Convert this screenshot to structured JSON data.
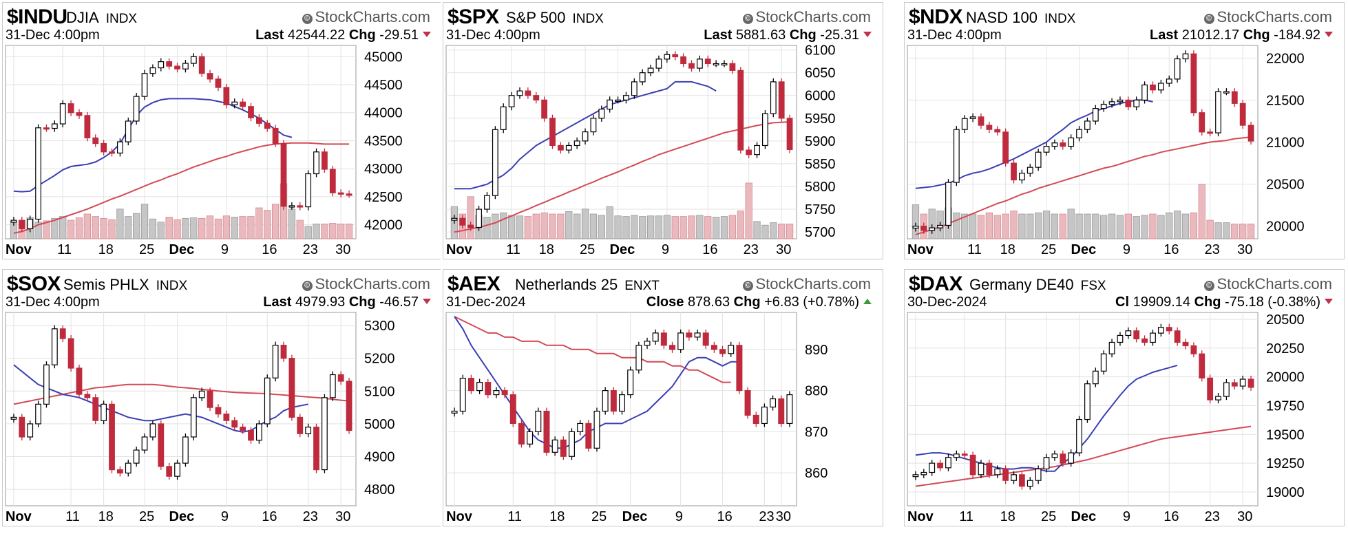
{
  "brand_label": "StockCharts.com",
  "chart_data": [
    {
      "type": "candlestick",
      "symbol": "$INDU",
      "name": "DJIA",
      "exchange": "INDX",
      "date": "31-Dec 4:00pm",
      "last_label": "Last",
      "last": "42544.22",
      "chg_label": "Chg",
      "chg": "-29.51",
      "direction": "down",
      "ylim": [
        41750,
        45200
      ],
      "yticks": [
        42000,
        42500,
        43000,
        43500,
        44000,
        44500,
        45000
      ],
      "xticks": [
        {
          "label": "Nov",
          "i": 0,
          "bold": true
        },
        {
          "label": "11",
          "i": 6
        },
        {
          "label": "18",
          "i": 11
        },
        {
          "label": "25",
          "i": 16
        },
        {
          "label": "Dec",
          "i": 20,
          "bold": true
        },
        {
          "label": "9",
          "i": 26
        },
        {
          "label": "16",
          "i": 31
        },
        {
          "label": "23",
          "i": 36
        },
        {
          "label": "30",
          "i": 40
        }
      ],
      "n": 42,
      "close": [
        42080,
        41930,
        42100,
        43730,
        43720,
        43800,
        44160,
        44000,
        43950,
        43550,
        43450,
        43300,
        43280,
        43480,
        43850,
        44290,
        44700,
        44800,
        44910,
        44830,
        44780,
        44880,
        45000,
        44700,
        44600,
        44450,
        44140,
        44190,
        44110,
        43910,
        43810,
        43720,
        43450,
        42330,
        42340,
        42320,
        42910,
        43300,
        42990,
        42570,
        42550,
        42544
      ],
      "ma20": [
        42600,
        42590,
        42600,
        42700,
        42790,
        42880,
        42980,
        43040,
        43060,
        43080,
        43120,
        43200,
        43300,
        43450,
        43700,
        43950,
        44100,
        44180,
        44230,
        44250,
        44250,
        44250,
        44250,
        44240,
        44230,
        44200,
        44170,
        44110,
        44050,
        43980,
        43900,
        43800,
        43700,
        43600,
        43560
      ],
      "ma50": [
        41850,
        41880,
        41930,
        42000,
        42040,
        42080,
        42130,
        42180,
        42230,
        42280,
        42340,
        42400,
        42460,
        42510,
        42570,
        42630,
        42690,
        42750,
        42800,
        42860,
        42910,
        42970,
        43030,
        43080,
        43130,
        43180,
        43220,
        43270,
        43310,
        43350,
        43390,
        43420,
        43440,
        43450,
        43460,
        43460,
        43460,
        43450,
        43440,
        43440,
        43440,
        43440
      ],
      "volume": [
        0.28,
        0.3,
        0.34,
        0.27,
        0.29,
        0.33,
        0.36,
        0.3,
        0.34,
        0.4,
        0.36,
        0.33,
        0.31,
        0.48,
        0.36,
        0.41,
        0.56,
        0.32,
        0.27,
        0.35,
        0.31,
        0.33,
        0.34,
        0.33,
        0.37,
        0.32,
        0.37,
        0.35,
        0.36,
        0.36,
        0.5,
        0.46,
        0.56,
        0.89,
        0.48,
        0.3,
        0.2,
        0.24,
        0.24,
        0.25,
        0.24,
        0.24
      ]
    },
    {
      "type": "candlestick",
      "symbol": "$SPX",
      "name": "S&P 500",
      "exchange": "INDX",
      "date": "31-Dec 4:00pm",
      "last_label": "Last",
      "last": "5881.63",
      "chg_label": "Chg",
      "chg": "-25.31",
      "direction": "down",
      "ylim": [
        5685,
        6110
      ],
      "yticks": [
        5700,
        5750,
        5800,
        5850,
        5900,
        5950,
        6000,
        6050,
        6100
      ],
      "xticks": [
        {
          "label": "Nov",
          "i": 0,
          "bold": true
        },
        {
          "label": "11",
          "i": 7
        },
        {
          "label": "18",
          "i": 11
        },
        {
          "label": "25",
          "i": 16
        },
        {
          "label": "Dec",
          "i": 20,
          "bold": true
        },
        {
          "label": "9",
          "i": 26
        },
        {
          "label": "16",
          "i": 31
        },
        {
          "label": "23",
          "i": 36
        },
        {
          "label": "30",
          "i": 40
        }
      ],
      "n": 42,
      "close": [
        5730,
        5715,
        5710,
        5750,
        5780,
        5925,
        5975,
        6000,
        6010,
        6000,
        5990,
        5950,
        5890,
        5880,
        5890,
        5900,
        5920,
        5950,
        5970,
        5990,
        5990,
        6000,
        6030,
        6050,
        6060,
        6080,
        6090,
        6085,
        6070,
        6060,
        6080,
        6070,
        6070,
        6070,
        6055,
        5880,
        5870,
        5890,
        5960,
        6030,
        5950,
        5881
      ],
      "ma20": [
        5795,
        5795,
        5795,
        5800,
        5805,
        5815,
        5825,
        5840,
        5860,
        5875,
        5890,
        5900,
        5910,
        5920,
        5930,
        5940,
        5950,
        5960,
        5970,
        5980,
        5985,
        5990,
        5995,
        6000,
        6005,
        6010,
        6015,
        6030,
        6030,
        6030,
        6025,
        6020,
        6010
      ],
      "ma50": [
        5700,
        5703,
        5707,
        5710,
        5715,
        5720,
        5728,
        5735,
        5743,
        5750,
        5758,
        5765,
        5773,
        5780,
        5788,
        5795,
        5803,
        5810,
        5818,
        5825,
        5832,
        5840,
        5847,
        5855,
        5862,
        5870,
        5876,
        5882,
        5888,
        5894,
        5900,
        5906,
        5912,
        5918,
        5922,
        5926,
        5930,
        5934,
        5937,
        5940,
        5941,
        5942
      ],
      "volume": [
        0.52,
        0.4,
        0.68,
        0.38,
        0.35,
        0.4,
        0.42,
        0.38,
        0.37,
        0.36,
        0.4,
        0.42,
        0.4,
        0.4,
        0.44,
        0.4,
        0.48,
        0.4,
        0.38,
        0.52,
        0.37,
        0.36,
        0.38,
        0.36,
        0.37,
        0.37,
        0.38,
        0.36,
        0.36,
        0.37,
        0.38,
        0.36,
        0.35,
        0.36,
        0.38,
        0.45,
        0.9,
        0.28,
        0.22,
        0.26,
        0.24,
        0.24
      ]
    },
    {
      "type": "candlestick",
      "symbol": "$NDX",
      "name": "NASD 100",
      "exchange": "INDX",
      "date": "31-Dec 4:00pm",
      "last_label": "Last",
      "last": "21012.17",
      "chg_label": "Chg",
      "chg": "-184.92",
      "direction": "down",
      "ylim": [
        19850,
        22150
      ],
      "yticks": [
        20000,
        20500,
        21000,
        21500,
        22000
      ],
      "xticks": [
        {
          "label": "Nov",
          "i": 0,
          "bold": true
        },
        {
          "label": "11",
          "i": 7
        },
        {
          "label": "18",
          "i": 11
        },
        {
          "label": "25",
          "i": 16
        },
        {
          "label": "Dec",
          "i": 20,
          "bold": true
        },
        {
          "label": "9",
          "i": 26
        },
        {
          "label": "16",
          "i": 31
        },
        {
          "label": "23",
          "i": 36
        },
        {
          "label": "30",
          "i": 40
        }
      ],
      "n": 42,
      "close": [
        20000,
        19950,
        19980,
        20010,
        20520,
        21150,
        21280,
        21300,
        21200,
        21150,
        21120,
        20750,
        20550,
        20630,
        20700,
        20880,
        20950,
        20990,
        20950,
        21050,
        21150,
        21250,
        21400,
        21450,
        21480,
        21500,
        21420,
        21500,
        21680,
        21620,
        21700,
        21750,
        21990,
        22050,
        21350,
        21120,
        21110,
        21600,
        21600,
        21460,
        21200,
        21012
      ],
      "ma20": [
        20450,
        20460,
        20470,
        20490,
        20510,
        20550,
        20600,
        20630,
        20650,
        20680,
        20720,
        20760,
        20800,
        20850,
        20900,
        20950,
        21000,
        21080,
        21150,
        21230,
        21280,
        21320,
        21370,
        21400,
        21430,
        21460,
        21480,
        21500,
        21500,
        21480
      ],
      "ma50": [
        19900,
        19930,
        19960,
        19990,
        20030,
        20070,
        20110,
        20150,
        20190,
        20230,
        20270,
        20300,
        20340,
        20380,
        20410,
        20450,
        20480,
        20510,
        20540,
        20570,
        20600,
        20630,
        20660,
        20690,
        20710,
        20740,
        20770,
        20800,
        20830,
        20850,
        20880,
        20900,
        20920,
        20940,
        20960,
        20980,
        21000,
        21010,
        21020,
        21040,
        21050,
        21060
      ],
      "volume": [
        0.55,
        0.4,
        0.48,
        0.45,
        0.5,
        0.42,
        0.4,
        0.4,
        0.38,
        0.42,
        0.38,
        0.4,
        0.45,
        0.4,
        0.4,
        0.42,
        0.45,
        0.4,
        0.4,
        0.48,
        0.4,
        0.4,
        0.4,
        0.38,
        0.4,
        0.38,
        0.4,
        0.36,
        0.38,
        0.4,
        0.38,
        0.42,
        0.45,
        0.4,
        0.42,
        0.88,
        0.3,
        0.26,
        0.26,
        0.24,
        0.24,
        0.24
      ]
    },
    {
      "type": "candlestick",
      "symbol": "$SOX",
      "name": "Semis PHLX",
      "exchange": "INDX",
      "date": "31-Dec 4:00pm",
      "last_label": "Last",
      "last": "4979.93",
      "chg_label": "Chg",
      "chg": "-46.57",
      "direction": "down",
      "ylim": [
        4750,
        5340
      ],
      "yticks": [
        4800,
        4900,
        5000,
        5100,
        5200,
        5300
      ],
      "xticks": [
        {
          "label": "Nov",
          "i": 0,
          "bold": true
        },
        {
          "label": "11",
          "i": 7
        },
        {
          "label": "18",
          "i": 11
        },
        {
          "label": "25",
          "i": 16
        },
        {
          "label": "Dec",
          "i": 20,
          "bold": true
        },
        {
          "label": "9",
          "i": 26
        },
        {
          "label": "16",
          "i": 31
        },
        {
          "label": "23",
          "i": 36
        },
        {
          "label": "30",
          "i": 40
        }
      ],
      "n": 42,
      "close": [
        5020,
        4960,
        5000,
        5060,
        5180,
        5290,
        5260,
        5170,
        5090,
        5080,
        5010,
        5060,
        4860,
        4850,
        4880,
        4920,
        4960,
        5000,
        4870,
        4840,
        4880,
        4960,
        5080,
        5100,
        5050,
        5030,
        5010,
        4990,
        4980,
        4950,
        5000,
        5140,
        5240,
        5200,
        5020,
        4970,
        4990,
        4860,
        5080,
        5150,
        5130,
        4980
      ],
      "ma20": [
        5180,
        5160,
        5140,
        5120,
        5110,
        5100,
        5090,
        5085,
        5080,
        5070,
        5060,
        5050,
        5040,
        5030,
        5020,
        5015,
        5010,
        5010,
        5015,
        5020,
        5025,
        5030,
        5025,
        5020,
        5010,
        5000,
        4990,
        4980,
        4975,
        4980,
        4995,
        5010,
        5020,
        5040,
        5050,
        5055,
        5060
      ],
      "ma50": [
        5060,
        5065,
        5070,
        5075,
        5080,
        5085,
        5090,
        5095,
        5100,
        5105,
        5110,
        5112,
        5115,
        5118,
        5120,
        5120,
        5120,
        5120,
        5118,
        5115,
        5112,
        5110,
        5108,
        5105,
        5103,
        5100,
        5098,
        5096,
        5095,
        5094,
        5093,
        5092,
        5090,
        5088,
        5086,
        5084,
        5082,
        5080,
        5078,
        5075,
        5072,
        5070
      ]
    },
    {
      "type": "candlestick",
      "symbol": "$AEX",
      "name": "Netherlands 25",
      "exchange": "ENXT",
      "date": "31-Dec-2024",
      "last_label": "Close",
      "last": "878.63",
      "chg_label": "Chg",
      "chg": "+6.83 (+0.78%)",
      "direction": "up",
      "ylim": [
        852,
        899
      ],
      "yticks": [
        860,
        870,
        880,
        890
      ],
      "xticks": [
        {
          "label": "Nov",
          "i": 0,
          "bold": true
        },
        {
          "label": "11",
          "i": 7
        },
        {
          "label": "18",
          "i": 12
        },
        {
          "label": "25",
          "i": 17
        },
        {
          "label": "Dec",
          "i": 21,
          "bold": true
        },
        {
          "label": "9",
          "i": 27
        },
        {
          "label": "16",
          "i": 32
        },
        {
          "label": "23",
          "i": 37
        },
        {
          "label": "30",
          "i": 39
        }
      ],
      "n": 41,
      "close": [
        875,
        883,
        880,
        882,
        879,
        880,
        879,
        872,
        867,
        870,
        875,
        865,
        868,
        864,
        870,
        872,
        866,
        875,
        880,
        875,
        879,
        885,
        891,
        892,
        894,
        891,
        890,
        894,
        893,
        894,
        891,
        890,
        889,
        891,
        880,
        874,
        872,
        876,
        878,
        872,
        879
      ],
      "ma20": [
        898,
        895,
        891,
        888,
        885,
        882,
        879,
        876,
        873,
        870,
        868,
        867,
        866,
        866,
        867,
        868,
        870,
        871,
        872,
        872,
        872,
        873,
        874,
        875,
        877,
        879,
        881,
        884,
        887,
        888,
        888,
        887,
        886,
        887,
        887
      ],
      "ma50": [
        898,
        897,
        896,
        895,
        894,
        894,
        893,
        893,
        892,
        892,
        892,
        891,
        891,
        891,
        890,
        890,
        890,
        889,
        889,
        889,
        888,
        888,
        888,
        887,
        887,
        887,
        886,
        886,
        885,
        885,
        884,
        883,
        882,
        882
      ]
    },
    {
      "type": "candlestick",
      "symbol": "$DAX",
      "name": "Germany DE40",
      "exchange": "FSX",
      "date": "30-Dec-2024",
      "last_label": "Cl",
      "last": "19909.14",
      "chg_label": "Chg",
      "chg": "-75.18 (-0.38%)",
      "direction": "down",
      "ylim": [
        18880,
        20560
      ],
      "yticks": [
        19000,
        19250,
        19500,
        19750,
        20000,
        20250,
        20500
      ],
      "xticks": [
        {
          "label": "Nov",
          "i": 0,
          "bold": true
        },
        {
          "label": "11",
          "i": 6
        },
        {
          "label": "18",
          "i": 11
        },
        {
          "label": "25",
          "i": 16
        },
        {
          "label": "Dec",
          "i": 20,
          "bold": true
        },
        {
          "label": "9",
          "i": 26
        },
        {
          "label": "16",
          "i": 31
        },
        {
          "label": "23",
          "i": 36
        },
        {
          "label": "30",
          "i": 40
        }
      ],
      "n": 42,
      "close": [
        19150,
        19170,
        19250,
        19210,
        19300,
        19330,
        19320,
        19150,
        19250,
        19150,
        19200,
        19100,
        19150,
        19050,
        19100,
        19200,
        19300,
        19330,
        19250,
        19340,
        19630,
        19940,
        20050,
        20200,
        20300,
        20360,
        20400,
        20330,
        20300,
        20380,
        20430,
        20400,
        20300,
        20270,
        20200,
        19990,
        19800,
        19830,
        19950,
        19920,
        19980,
        19909
      ],
      "ma20": [
        19320,
        19330,
        19340,
        19340,
        19330,
        19310,
        19290,
        19270,
        19250,
        19230,
        19210,
        19200,
        19200,
        19210,
        19210,
        19200,
        19180,
        19180,
        19250,
        19300,
        19380,
        19460,
        19560,
        19660,
        19750,
        19840,
        19920,
        19980,
        20010,
        20040,
        20060,
        20080,
        20100
      ],
      "ma50": [
        19050,
        19060,
        19070,
        19080,
        19090,
        19100,
        19110,
        19120,
        19130,
        19140,
        19150,
        19160,
        19170,
        19180,
        19190,
        19200,
        19210,
        19220,
        19235,
        19250,
        19265,
        19280,
        19300,
        19320,
        19340,
        19360,
        19380,
        19400,
        19420,
        19440,
        19460,
        19470,
        19480,
        19490,
        19500,
        19510,
        19520,
        19530,
        19540,
        19550,
        19560,
        19570
      ]
    }
  ]
}
